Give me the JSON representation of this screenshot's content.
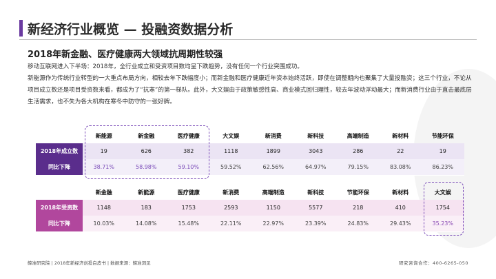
{
  "header": {
    "title": "新经济行业概览 — 投融资数据分析",
    "subtitle": "2018年新金融、医疗健康两大领域抗周期性较强"
  },
  "paragraphs": [
    "移动互联网进入下半场：2018年，全行业成立和受资项目数均呈下跌趋势，没有任何一个行业突围成功。",
    "新能源作为传统行业转型的一大重点布局方向，相较去年下跌幅度小；而新金融和医疗健康近年资本始终活跃，即使在调整期内也聚集了大量投融资；这三个行业，不论从项目成立数还是项目受资数来看，都成为了“抗寒”的第一梯队。此外，大文娱由于政策敏感性高、商业模式回归理性，较去年波动浮动最大；而新消费行业由于直击最底层生活需求，也不失为各大机构在寒冬中防守的一张好牌。"
  ],
  "tables": [
    {
      "columns": [
        "新能源",
        "新金融",
        "医疗健康",
        "大文娱",
        "新消费",
        "新科技",
        "高端制造",
        "新材料",
        "节能环保"
      ],
      "rows": [
        {
          "label": "2018年成立数",
          "cells": [
            19,
            626,
            382,
            1118,
            1899,
            3043,
            286,
            22,
            19
          ]
        },
        {
          "label": "同比下降",
          "cells": [
            "38.71%",
            "58.98%",
            "59.10%",
            "59.52%",
            "62.56%",
            "64.97%",
            "79.15%",
            "83.08%",
            "86.23%"
          ]
        }
      ]
    },
    {
      "columns": [
        "新金融",
        "新能源",
        "医疗健康",
        "新消费",
        "高端制造",
        "新科技",
        "节能环保",
        "新材料",
        "大文娱"
      ],
      "rows": [
        {
          "label": "2018年受资数",
          "cells": [
            1148,
            183,
            1753,
            2593,
            1150,
            5577,
            218,
            410,
            1754
          ]
        },
        {
          "label": "同比下降",
          "cells": [
            "10.03%",
            "14.08%",
            "15.48%",
            "22.11%",
            "22.97%",
            "23.39%",
            "24.83%",
            "29.43%",
            "35.23%"
          ]
        }
      ]
    }
  ],
  "footer": {
    "left": "鲸准研究院 | 2018年新经济创投白皮书 | 数据来源：鲸准洞见",
    "right": "研究咨询合作：400-6265-050"
  }
}
